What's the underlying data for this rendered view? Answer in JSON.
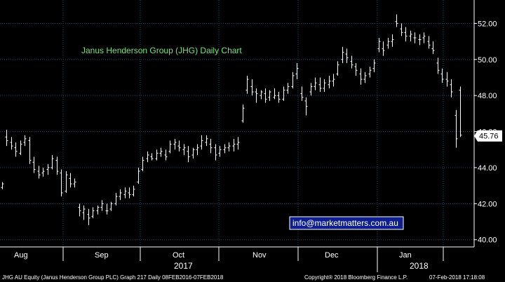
{
  "chart_data": {
    "type": "ohlc",
    "title": "Janus Henderson Group (JHG) Daily Chart",
    "ylim": [
      39.6,
      53.3
    ],
    "y_ticks": [
      "40.00",
      "42.00",
      "44.00",
      "46.00",
      "48.00",
      "50.00",
      "52.00"
    ],
    "last_price": "45.76",
    "months": [
      "Aug",
      "Sep",
      "Oct",
      "Nov",
      "Dec",
      "Jan"
    ],
    "years": [
      "2017",
      "2018"
    ],
    "grid": true,
    "colors": {
      "background": "#000000",
      "grid": "#1b4a6b",
      "bars": "#ffffff",
      "title": "#7ee07e",
      "last_label": "#ffffff"
    },
    "series": [
      [
        42.9,
        43.2,
        42.8,
        43.1
      ],
      [
        45.7,
        46.1,
        45.2,
        45.5
      ],
      [
        45.4,
        45.7,
        45.0,
        45.2
      ],
      [
        45.1,
        45.4,
        44.6,
        44.9
      ],
      [
        44.8,
        45.5,
        44.7,
        45.3
      ],
      [
        45.4,
        45.8,
        45.2,
        45.6
      ],
      [
        45.5,
        45.7,
        44.2,
        44.4
      ],
      [
        44.3,
        44.6,
        43.7,
        43.9
      ],
      [
        43.8,
        44.1,
        43.4,
        43.6
      ],
      [
        43.7,
        44.0,
        43.5,
        43.8
      ],
      [
        43.9,
        44.2,
        43.6,
        44.0
      ],
      [
        44.0,
        44.7,
        43.9,
        44.5
      ],
      [
        44.4,
        44.6,
        43.6,
        43.8
      ],
      [
        43.7,
        43.9,
        42.4,
        42.6
      ],
      [
        42.7,
        43.8,
        42.6,
        43.6
      ],
      [
        43.4,
        43.7,
        42.9,
        43.1
      ],
      [
        43.1,
        43.4,
        42.9,
        43.2
      ],
      [
        41.8,
        42.0,
        41.3,
        41.6
      ],
      [
        41.5,
        41.9,
        41.1,
        41.7
      ],
      [
        41.4,
        41.7,
        40.8,
        41.2
      ],
      [
        41.3,
        41.8,
        41.2,
        41.6
      ],
      [
        41.6,
        41.9,
        41.4,
        41.8
      ],
      [
        41.8,
        42.2,
        41.6,
        42.0
      ],
      [
        41.6,
        42.0,
        41.4,
        41.6
      ],
      [
        41.7,
        42.1,
        41.6,
        42.0
      ],
      [
        42.0,
        42.6,
        41.9,
        42.4
      ],
      [
        42.4,
        42.8,
        42.2,
        42.6
      ],
      [
        42.5,
        42.9,
        42.3,
        42.7
      ],
      [
        42.6,
        42.9,
        42.3,
        42.5
      ],
      [
        42.5,
        43.0,
        42.4,
        42.8
      ],
      [
        43.2,
        44.0,
        43.1,
        43.8
      ],
      [
        43.9,
        44.6,
        43.8,
        44.4
      ],
      [
        44.5,
        44.9,
        44.3,
        44.7
      ],
      [
        44.6,
        44.8,
        44.4,
        44.5
      ],
      [
        44.5,
        45.0,
        44.4,
        44.8
      ],
      [
        44.8,
        45.1,
        44.6,
        44.9
      ],
      [
        44.7,
        45.0,
        44.4,
        44.6
      ],
      [
        44.9,
        45.5,
        44.8,
        45.3
      ],
      [
        45.3,
        45.6,
        45.0,
        45.4
      ],
      [
        45.2,
        45.5,
        44.9,
        45.1
      ],
      [
        45.0,
        45.3,
        44.7,
        45.1
      ],
      [
        44.9,
        45.2,
        44.3,
        44.6
      ],
      [
        44.7,
        45.1,
        44.5,
        45.0
      ],
      [
        45.0,
        45.3,
        44.7,
        45.1
      ],
      [
        45.2,
        45.8,
        45.0,
        45.5
      ],
      [
        45.4,
        45.8,
        45.2,
        45.6
      ],
      [
        45.3,
        45.6,
        44.8,
        45.1
      ],
      [
        45.1,
        45.3,
        44.4,
        44.7
      ],
      [
        44.8,
        45.2,
        44.6,
        45.0
      ],
      [
        45.0,
        45.3,
        44.8,
        45.1
      ],
      [
        45.1,
        45.4,
        44.9,
        45.2
      ],
      [
        45.2,
        45.6,
        44.9,
        45.3
      ],
      [
        45.3,
        45.7,
        45.0,
        45.4
      ],
      [
        46.6,
        47.5,
        46.5,
        47.3
      ],
      [
        48.3,
        49.1,
        48.1,
        48.9
      ],
      [
        48.5,
        48.9,
        48.0,
        48.2
      ],
      [
        48.2,
        48.4,
        47.6,
        48.1
      ],
      [
        48.0,
        48.3,
        47.8,
        48.2
      ],
      [
        48.1,
        48.4,
        47.6,
        47.8
      ],
      [
        47.9,
        48.3,
        47.7,
        48.2
      ],
      [
        47.9,
        48.4,
        47.8,
        48.0
      ],
      [
        48.0,
        48.2,
        47.6,
        47.8
      ],
      [
        47.8,
        48.5,
        47.7,
        48.3
      ],
      [
        48.3,
        48.7,
        48.1,
        48.5
      ],
      [
        48.5,
        49.3,
        48.4,
        49.1
      ],
      [
        49.2,
        49.8,
        48.9,
        49.5
      ],
      [
        48.1,
        48.5,
        47.7,
        47.9
      ],
      [
        47.7,
        47.9,
        46.9,
        47.4
      ],
      [
        48.2,
        48.7,
        48.0,
        48.5
      ],
      [
        48.5,
        49.0,
        48.3,
        48.7
      ],
      [
        48.6,
        49.0,
        48.2,
        48.4
      ],
      [
        48.4,
        48.9,
        48.2,
        48.7
      ],
      [
        48.6,
        49.1,
        48.4,
        48.8
      ],
      [
        48.8,
        49.2,
        48.5,
        48.9
      ],
      [
        49.2,
        49.9,
        49.1,
        49.7
      ],
      [
        50.0,
        50.7,
        49.8,
        50.4
      ],
      [
        50.3,
        50.6,
        49.8,
        50.1
      ],
      [
        49.9,
        50.2,
        49.5,
        49.7
      ],
      [
        49.6,
        49.8,
        49.1,
        49.4
      ],
      [
        49.2,
        49.5,
        48.6,
        48.9
      ],
      [
        48.9,
        49.3,
        48.7,
        49.1
      ],
      [
        49.2,
        49.6,
        49.0,
        49.4
      ],
      [
        49.5,
        50.0,
        49.3,
        49.8
      ],
      [
        50.6,
        51.2,
        50.4,
        51.0
      ],
      [
        50.6,
        51.0,
        50.2,
        50.5
      ],
      [
        50.8,
        51.2,
        50.6,
        51.0
      ],
      [
        51.0,
        51.4,
        50.7,
        51.1
      ],
      [
        52.1,
        52.5,
        51.8,
        52.0
      ],
      [
        51.7,
        52.0,
        51.3,
        51.5
      ],
      [
        51.5,
        51.8,
        51.0,
        51.3
      ],
      [
        51.3,
        51.6,
        51.0,
        51.4
      ],
      [
        51.2,
        51.5,
        50.9,
        51.2
      ],
      [
        51.1,
        51.4,
        50.8,
        51.1
      ],
      [
        51.2,
        51.5,
        50.9,
        51.3
      ],
      [
        51.0,
        51.3,
        50.6,
        50.8
      ],
      [
        50.6,
        51.0,
        50.3,
        50.5
      ],
      [
        49.8,
        50.1,
        49.2,
        49.4
      ],
      [
        49.2,
        49.5,
        48.7,
        48.9
      ],
      [
        48.9,
        49.3,
        48.5,
        48.8
      ],
      [
        48.6,
        48.9,
        47.9,
        48.2
      ],
      [
        46.9,
        47.2,
        45.1,
        45.6
      ],
      [
        48.3,
        48.5,
        45.7,
        45.8
      ]
    ]
  },
  "watermark": "info@marketmatters.com.au",
  "footer": {
    "left": "JHG AU Equity (Janus Henderson Group PLC) Graph 217  Daily 08FEB2016-07FEB2018",
    "center": "Copyright® 2018 Bloomberg Finance L.P.",
    "right": "07-Feb-2018 17:18:08"
  }
}
